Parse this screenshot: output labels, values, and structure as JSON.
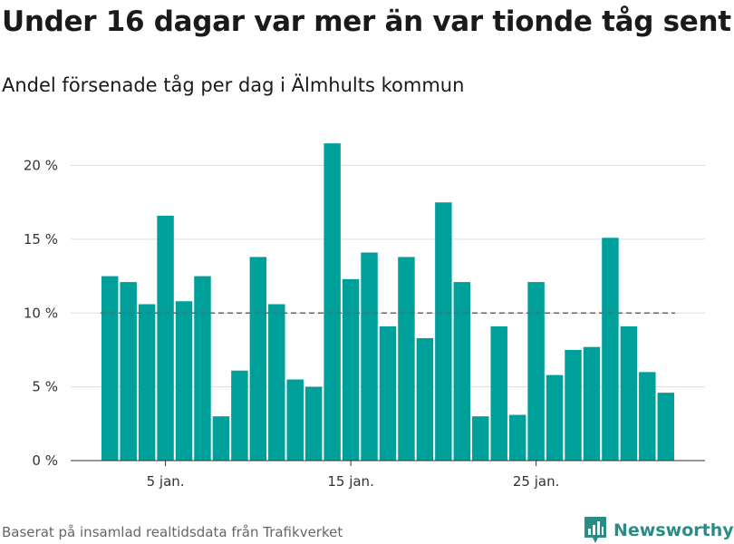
{
  "title": "Under 16 dagar var mer än var tionde tåg sent",
  "subtitle": "Andel försenade tåg per dag i Älmhults kommun",
  "source": "Baserat på insamlad realtidsdata från Trafikverket",
  "brand": {
    "name": "Newsworthy",
    "icon": "newsworthy-logo-icon"
  },
  "colors": {
    "bar": "#00A09A",
    "reference_line": "#666666",
    "grid": "#dddddd",
    "brand": "#2a8c84"
  },
  "chart_data": {
    "type": "bar",
    "title": "Under 16 dagar var mer än var tionde tåg sent",
    "subtitle": "Andel försenade tåg per dag i Älmhults kommun",
    "x": [
      2,
      3,
      4,
      5,
      6,
      7,
      8,
      9,
      10,
      11,
      12,
      13,
      14,
      15,
      16,
      17,
      18,
      19,
      20,
      21,
      22,
      23,
      24,
      25,
      26,
      27,
      28,
      29,
      30,
      31,
      32
    ],
    "values": [
      12.5,
      12.1,
      10.6,
      16.6,
      10.8,
      12.5,
      3.0,
      6.1,
      13.8,
      10.6,
      5.5,
      5.0,
      21.5,
      12.3,
      14.1,
      9.1,
      13.8,
      8.3,
      17.5,
      12.1,
      3.0,
      9.1,
      3.1,
      12.1,
      5.8,
      7.5,
      7.7,
      15.1,
      9.1,
      6.0,
      4.6
    ],
    "ylim": [
      0,
      22
    ],
    "y_ticks": [
      {
        "value": 0,
        "label": "0 %"
      },
      {
        "value": 5,
        "label": "5 %"
      },
      {
        "value": 10,
        "label": "10 %"
      },
      {
        "value": 15,
        "label": "15 %"
      },
      {
        "value": 20,
        "label": "20 %"
      }
    ],
    "x_ticks": [
      {
        "value": 5,
        "label": "5 jan."
      },
      {
        "value": 15,
        "label": "15 jan."
      },
      {
        "value": 25,
        "label": "25 jan."
      }
    ],
    "reference_line": {
      "value": 10,
      "style": "dashed"
    },
    "grid": true,
    "legend": "none"
  }
}
